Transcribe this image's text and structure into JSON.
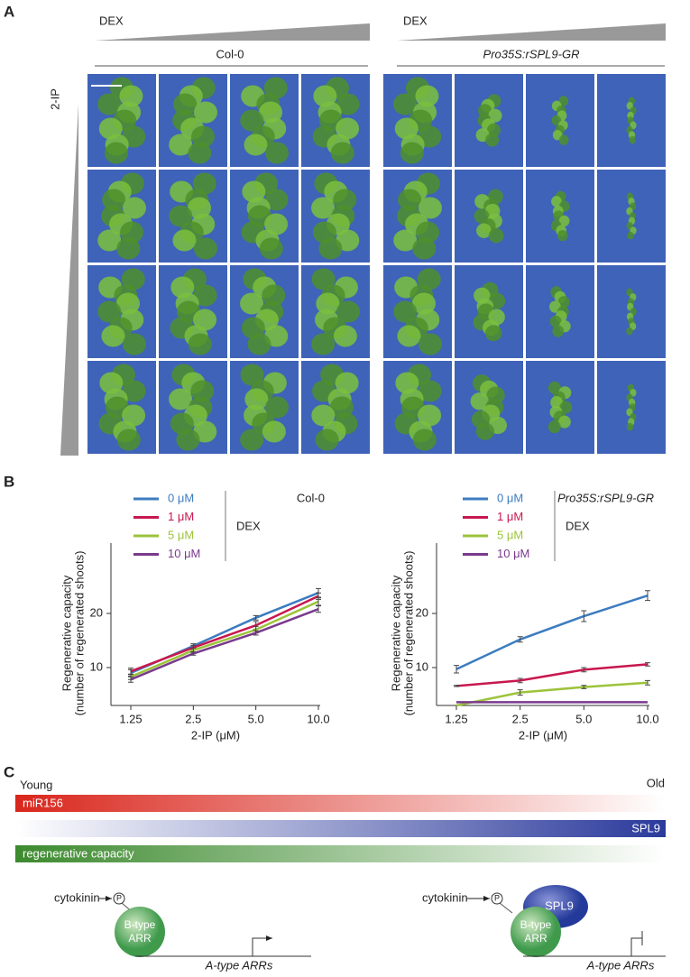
{
  "panel_a": {
    "label": "A",
    "dex_left": "DEX",
    "dex_right": "DEX",
    "genotypes": [
      "Col-0",
      "Pro35S:rSPL9-GR"
    ],
    "cytokinin_axis": "2-IP"
  },
  "panel_b": {
    "label": "B"
  },
  "chart_data": [
    {
      "type": "line",
      "title": "Col-0",
      "legend_title": "DEX",
      "categories": [
        "1.25",
        "2.5",
        "5.0",
        "10.0"
      ],
      "xlabel": "2-IP (μM)",
      "ylabel": [
        "Regenerative capacity",
        "(number of regenerated shoots)"
      ],
      "ylim": [
        3,
        33
      ],
      "yticks": [
        10,
        20
      ],
      "series": [
        {
          "name": "0 μM",
          "color": "#3c7cc0",
          "values": [
            9.0,
            14.0,
            19.2,
            23.8
          ],
          "errors": [
            0.6,
            0.4,
            0.4,
            0.8
          ]
        },
        {
          "name": "1 μM",
          "color": "#c8174f",
          "values": [
            9.3,
            13.7,
            17.8,
            23.2
          ],
          "errors": [
            0.6,
            0.4,
            0.7,
            0.6
          ]
        },
        {
          "name": "5 μM",
          "color": "#9cc33a",
          "values": [
            8.3,
            13.2,
            17.0,
            22.2
          ],
          "errors": [
            0.5,
            0.4,
            0.6,
            0.7
          ]
        },
        {
          "name": "10 μM",
          "color": "#7a3a8c",
          "values": [
            7.8,
            12.6,
            16.4,
            20.8
          ],
          "errors": [
            0.5,
            0.3,
            0.4,
            0.6
          ]
        }
      ]
    },
    {
      "type": "line",
      "title": "Pro35S:rSPL9-GR",
      "legend_title": "DEX",
      "categories": [
        "1.25",
        "2.5",
        "5.0",
        "10.0"
      ],
      "xlabel": "2-IP (μM)",
      "ylabel": [
        "Regenerative capacity",
        "(number of regenerated shoots)"
      ],
      "ylim": [
        3,
        33
      ],
      "yticks": [
        10,
        20
      ],
      "series": [
        {
          "name": "0 μM",
          "color": "#3c7cc0",
          "values": [
            9.7,
            15.2,
            19.5,
            23.3
          ],
          "errors": [
            0.7,
            0.5,
            1.0,
            0.9
          ]
        },
        {
          "name": "1 μM",
          "color": "#c8174f",
          "values": [
            6.6,
            7.6,
            9.6,
            10.6
          ],
          "errors": [
            0.1,
            0.4,
            0.4,
            0.3
          ]
        },
        {
          "name": "5 μM",
          "color": "#9cc33a",
          "values": [
            3.0,
            5.4,
            6.4,
            7.2
          ],
          "errors": [
            0,
            0.5,
            0.3,
            0.4
          ]
        },
        {
          "name": "10 μM",
          "color": "#7a3a8c",
          "values": [
            3.6,
            3.6,
            3.6,
            3.6
          ],
          "errors": [
            0,
            0,
            0,
            0
          ]
        }
      ]
    }
  ],
  "panel_c": {
    "label": "C",
    "young": "Young",
    "old": "Old",
    "bars": [
      "miR156",
      "SPL9",
      "regenerative capacity"
    ],
    "left": {
      "signal": "cytokinin",
      "phospho": "P",
      "factor": [
        "B-type",
        "ARR"
      ],
      "target": "A-type ARRs"
    },
    "right": {
      "signal": "cytokinin",
      "phospho": "P",
      "repressor": "SPL9",
      "factor": [
        "B-type",
        "ARR"
      ],
      "target": "A-type ARRs"
    }
  }
}
